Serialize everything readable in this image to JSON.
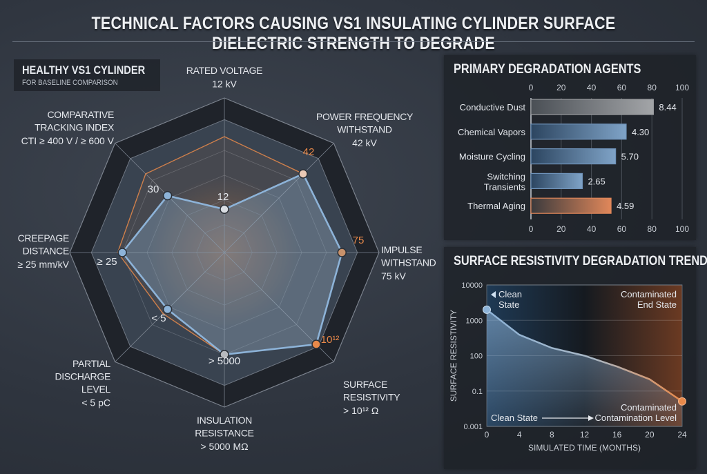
{
  "title": "TECHNICAL FACTORS CAUSING VS1 INSULATING CYLINDER SURFACE DIELECTRIC STRENGTH TO DEGRADE",
  "colors": {
    "blue": "#8db3d8",
    "orange": "#e8894a",
    "panel": "#1c2026",
    "band": "#22262d"
  },
  "chart_data": [
    {
      "type": "radar",
      "title": "HEALTHY VS1 CYLINDER",
      "subtitle": "FOR BASELINE COMPARISON",
      "axes": [
        {
          "label": [
            "RATED VOLTAGE"
          ],
          "spec": "12 kV",
          "value_label": "12"
        },
        {
          "label": [
            "POWER FREQUENCY",
            "WITHSTAND"
          ],
          "spec": "42 kV",
          "value_label": "42"
        },
        {
          "label": [
            "IMPULSE",
            "WITHSTAND"
          ],
          "spec": "75 kV",
          "value_label": "75"
        },
        {
          "label": [
            "SURFACE",
            "RESISTIVITY"
          ],
          "spec": "> 10¹² Ω",
          "value_label": "10¹²"
        },
        {
          "label": [
            "INSULATION",
            "RESISTANCE"
          ],
          "spec": "> 5000 MΩ",
          "value_label": "> 5000"
        },
        {
          "label": [
            "PARTIAL",
            "DISCHARGE",
            "LEVEL"
          ],
          "spec": "< 5 pC",
          "value_label": "< 5"
        },
        {
          "label": [
            "CREEPAGE",
            "DISTANCE"
          ],
          "spec": "≥ 25 mm/kV",
          "value_label": "≥ 25"
        },
        {
          "label": [
            "COMPARATIVE",
            "TRACKING INDEX"
          ],
          "spec": "CTI ≥ 400 V / ≥ 600 V",
          "value_label": "30"
        }
      ],
      "range": [
        0,
        1
      ],
      "series": [
        {
          "color": "#e8894a",
          "values": [
            0.75,
            0.72,
            0.76,
            0.84,
            0.66,
            0.56,
            0.69,
            0.72
          ]
        },
        {
          "color": "#8db3d8",
          "values": [
            0.28,
            0.72,
            0.76,
            0.84,
            0.66,
            0.52,
            0.66,
            0.52
          ]
        }
      ]
    },
    {
      "type": "bar",
      "orientation": "horizontal",
      "title": "PRIMARY DEGRADATION AGENTS",
      "categories": [
        "Conductive Dust",
        "Chemical Vapors",
        "Moisture Cycling",
        "Switching Transients",
        "Thermal Aging"
      ],
      "values": [
        81,
        63,
        56,
        34,
        53
      ],
      "data_labels": [
        "8.44",
        "4.30",
        "5.70",
        "2.65",
        "4.59"
      ],
      "bar_colors": [
        "#9a9c9f",
        "#6f93ba",
        "#6f93ba",
        "#6f93ba",
        "#e0875a"
      ],
      "xticks": [
        "0",
        "20",
        "40",
        "60",
        "80",
        "100"
      ],
      "xlim": [
        0,
        100
      ],
      "grid": true
    },
    {
      "type": "area",
      "title": "SURFACE RESISTIVITY DEGRADATION TREND",
      "xlabel": "SIMULATED TIME (MONTHS)",
      "ylabel": "SURFACE RESISTIVITY",
      "x": [
        0,
        4,
        8,
        12,
        16,
        20,
        24
      ],
      "y": [
        2000,
        390,
        165,
        100,
        12,
        1,
        0.026
      ],
      "xticks": [
        "0",
        "4",
        "8",
        "12",
        "16",
        "20",
        "24"
      ],
      "yticks": [
        "10000",
        "1000",
        "100",
        "0.1",
        "0.001"
      ],
      "yscale": "log",
      "annotations": {
        "clean_top": [
          "Clean",
          "State"
        ],
        "contaminated_top": [
          "Contaminated",
          "End State"
        ],
        "contaminated_point": "Contaminated",
        "bottom_left": "Clean State",
        "bottom_right": "Contamination Level"
      },
      "grid": true
    }
  ]
}
